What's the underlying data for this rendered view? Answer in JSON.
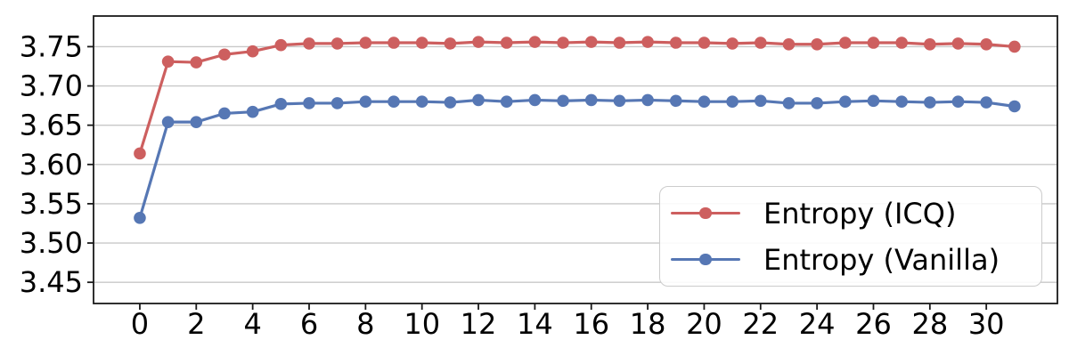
{
  "figure": {
    "background": "#ffffff",
    "axis_color": "#1a1a1a",
    "tick_label_color": "#000000"
  },
  "chart_data": {
    "type": "line",
    "title": "",
    "x": [
      0,
      1,
      2,
      3,
      4,
      5,
      6,
      7,
      8,
      9,
      10,
      11,
      12,
      13,
      14,
      15,
      16,
      17,
      18,
      19,
      20,
      21,
      22,
      23,
      24,
      25,
      26,
      27,
      28,
      29,
      30,
      31
    ],
    "series": [
      {
        "name": "Entropy (ICQ)",
        "color": "#cd5f5f",
        "values": [
          3.614,
          3.731,
          3.73,
          3.74,
          3.744,
          3.752,
          3.754,
          3.754,
          3.755,
          3.755,
          3.755,
          3.754,
          3.756,
          3.755,
          3.756,
          3.755,
          3.756,
          3.755,
          3.756,
          3.755,
          3.755,
          3.754,
          3.755,
          3.753,
          3.753,
          3.755,
          3.755,
          3.755,
          3.753,
          3.754,
          3.753,
          3.75
        ]
      },
      {
        "name": "Entropy (Vanilla)",
        "color": "#5677b4",
        "values": [
          3.532,
          3.654,
          3.654,
          3.665,
          3.667,
          3.677,
          3.678,
          3.678,
          3.68,
          3.68,
          3.68,
          3.679,
          3.682,
          3.68,
          3.682,
          3.681,
          3.682,
          3.681,
          3.682,
          3.681,
          3.68,
          3.68,
          3.681,
          3.678,
          3.678,
          3.68,
          3.681,
          3.68,
          3.679,
          3.68,
          3.679,
          3.674
        ]
      }
    ],
    "xticks": [
      0,
      2,
      4,
      6,
      8,
      10,
      12,
      14,
      16,
      18,
      20,
      22,
      24,
      26,
      28,
      30
    ],
    "ytick_labels": [
      "3.45",
      "3.50",
      "3.55",
      "3.60",
      "3.65",
      "3.70",
      "3.75"
    ],
    "xlim": [
      -1.64,
      32.52
    ],
    "ylim": [
      3.423,
      3.789
    ],
    "grid": "horizontal-only",
    "grid_color": "#c8c8c8",
    "legend_position": "lower right"
  }
}
